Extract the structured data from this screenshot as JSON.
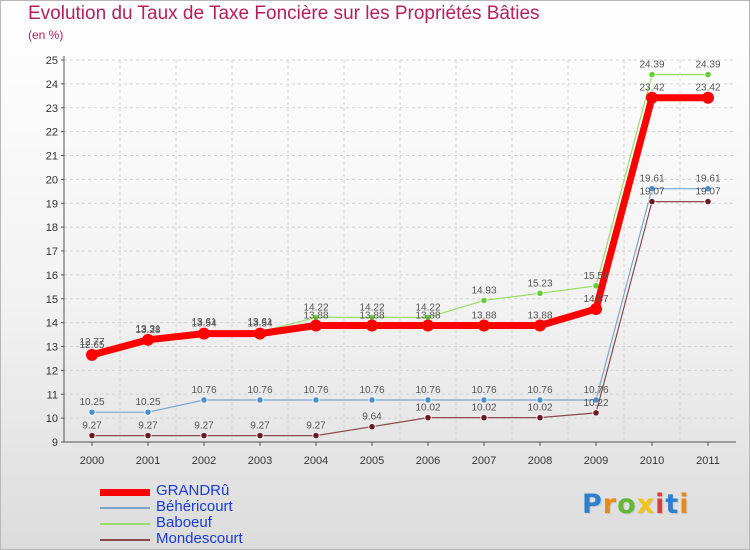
{
  "title": "Evolution du Taux de Taxe Foncière sur les Propriétés Bâties",
  "unit_label": "(en %)",
  "chart_data": {
    "type": "line",
    "title": "Evolution du Taux de Taxe Foncière sur les Propriétés Bâties",
    "ylabel": "(en %)",
    "xlabel": "",
    "x": [
      "2000",
      "2001",
      "2002",
      "2003",
      "2004",
      "2005",
      "2006",
      "2007",
      "2008",
      "2009",
      "2010",
      "2011"
    ],
    "ylim": [
      9,
      25
    ],
    "yticks": [
      "9",
      "10",
      "11",
      "12",
      "13",
      "14",
      "15",
      "16",
      "17",
      "18",
      "19",
      "20",
      "21",
      "22",
      "23",
      "24",
      "25"
    ],
    "legend_position": "bottom-left",
    "series": [
      {
        "name": "GRANDRû",
        "color": "#ff0000",
        "width": 7,
        "marker": "#ff0000",
        "values": [
          12.65,
          13.28,
          13.54,
          13.54,
          13.88,
          13.88,
          13.88,
          13.88,
          13.88,
          14.57,
          23.42,
          23.42
        ],
        "labels": [
          "12.65",
          "13.28",
          "13.54",
          "13.54",
          "13.88",
          "13.88",
          "13.88",
          "13.88",
          "13.88",
          "14.57",
          "23.42",
          "23.42"
        ]
      },
      {
        "name": "Béhéricourt",
        "color": "#7aa6cc",
        "width": 1.2,
        "marker": "#4a8fcf",
        "values": [
          10.25,
          10.25,
          10.76,
          10.76,
          10.76,
          10.76,
          10.76,
          10.76,
          10.76,
          10.76,
          19.61,
          19.61
        ],
        "labels": [
          "10.25",
          "10.25",
          "10.76",
          "10.76",
          "10.76",
          "10.76",
          "10.76",
          "10.76",
          "10.76",
          "10.76",
          "19.61",
          "19.61"
        ]
      },
      {
        "name": "Baboeuf",
        "color": "#99dd66",
        "width": 1.2,
        "marker": "#66cc33",
        "values": [
          12.77,
          13.31,
          13.61,
          13.61,
          14.22,
          14.22,
          14.22,
          14.93,
          15.23,
          15.54,
          24.39,
          24.39
        ],
        "labels": [
          "12.77",
          "13.31",
          "13.61",
          "13.61",
          "14.22",
          "14.22",
          "14.22",
          "14.93",
          "15.23",
          "15.54",
          "24.39",
          "24.39"
        ]
      },
      {
        "name": "Mondescourt",
        "color": "#8a4a4a",
        "width": 1.2,
        "marker": "#6b1a22",
        "values": [
          9.27,
          9.27,
          9.27,
          9.27,
          9.27,
          9.64,
          10.02,
          10.02,
          10.02,
          10.22,
          19.07,
          19.07
        ],
        "labels": [
          "9.27",
          "9.27",
          "9.27",
          "9.27",
          "9.27",
          "9.64",
          "10.02",
          "10.02",
          "10.02",
          "10.22",
          "19.07",
          "19.07"
        ]
      }
    ]
  },
  "legend": [
    {
      "label": "GRANDRû",
      "color": "#ff0000",
      "text_color": "#1a3ad6",
      "weight": 7
    },
    {
      "label": "Béhéricourt",
      "color": "#7aa6cc",
      "text_color": "#1a3ad6",
      "weight": 2
    },
    {
      "label": "Baboeuf",
      "color": "#99dd66",
      "text_color": "#1a3ad6",
      "weight": 2
    },
    {
      "label": "Mondescourt",
      "color": "#8a4a4a",
      "text_color": "#1a3ad6",
      "weight": 2
    }
  ],
  "logo": {
    "text": "Proxiti",
    "letters": [
      "P",
      "r",
      "o",
      "x",
      "i",
      "t",
      "i"
    ],
    "colors": [
      "#2f7fcf",
      "#e8891b",
      "#66b83a",
      "#f0c419",
      "#e03a3a",
      "#2f7fcf",
      "#e8891b"
    ]
  }
}
